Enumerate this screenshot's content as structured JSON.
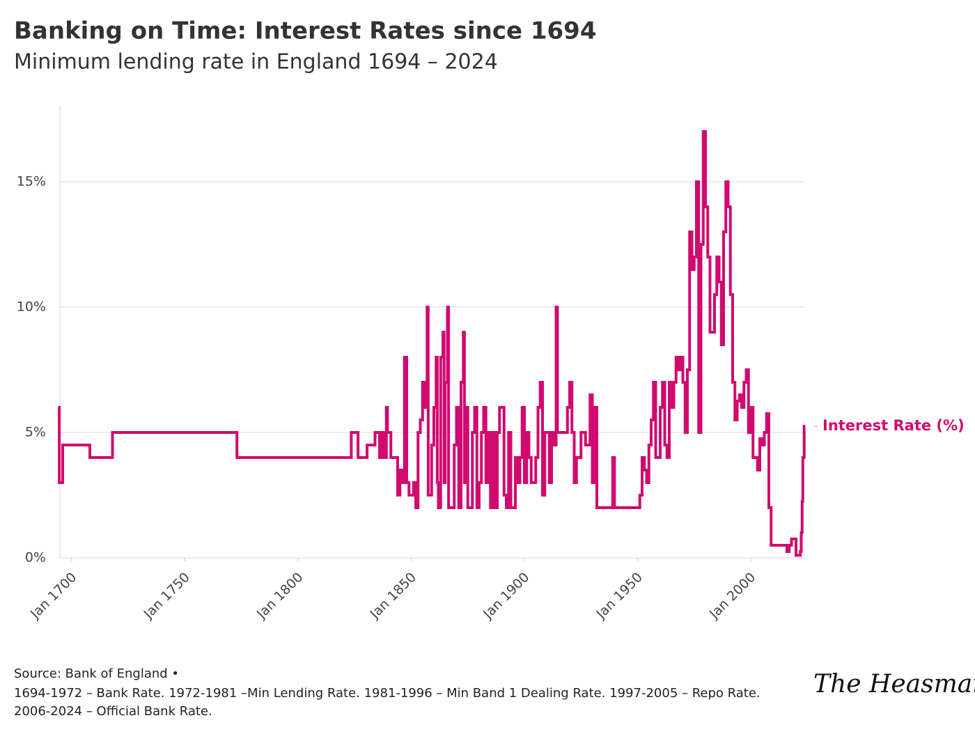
{
  "chart_data": {
    "type": "line",
    "step": true,
    "title": "Banking on Time: Interest Rates since 1694",
    "subtitle": "Minimum lending rate in England 1694 – 2024",
    "source": "Source: Bank of England •",
    "notes": [
      "1694-1972 – Bank Rate. 1972-1981 –Min Lending Rate. 1981-1996 – Min Band 1 Dealing Rate. 1997-2005 – Repo Rate.",
      "2006-2024 – Official Bank Rate."
    ],
    "signature": "The Heasman",
    "grid": true,
    "xlim": [
      1694,
      2024
    ],
    "ylim": [
      0,
      18
    ],
    "xticks": [
      {
        "value": 1700,
        "label": "Jan 1700"
      },
      {
        "value": 1750,
        "label": "Jan 1750"
      },
      {
        "value": 1800,
        "label": "Jan 1800"
      },
      {
        "value": 1850,
        "label": "Jan 1850"
      },
      {
        "value": 1900,
        "label": "Jan 1900"
      },
      {
        "value": 1950,
        "label": "Jan 1950"
      },
      {
        "value": 2000,
        "label": "Jan 2000"
      }
    ],
    "yticks": [
      {
        "value": 0,
        "label": "0%"
      },
      {
        "value": 5,
        "label": "5%"
      },
      {
        "value": 10,
        "label": "10%"
      },
      {
        "value": 15,
        "label": "15%"
      }
    ],
    "series": [
      {
        "name": "Interest Rate (%)",
        "color": "#d10a6f",
        "x": [
          1694,
          1694.5,
          1696,
          1708,
          1718,
          1773,
          1823.5,
          1826.5,
          1830.5,
          1834,
          1836,
          1837,
          1838,
          1839,
          1839.5,
          1840,
          1841,
          1842,
          1844,
          1845,
          1846,
          1847,
          1848,
          1849,
          1851,
          1852,
          1853,
          1854,
          1855,
          1856,
          1857,
          1857.5,
          1858,
          1859,
          1860,
          1861,
          1861.5,
          1862,
          1863,
          1864,
          1864.5,
          1865,
          1866,
          1866.5,
          1867,
          1869,
          1870,
          1871,
          1872,
          1873,
          1873.5,
          1874,
          1875,
          1877,
          1878,
          1879,
          1880,
          1881,
          1882,
          1883,
          1884,
          1885,
          1886,
          1887,
          1888,
          1889,
          1890,
          1891,
          1892,
          1893,
          1894,
          1896,
          1897,
          1898,
          1899,
          1900,
          1901,
          1902,
          1903,
          1904,
          1905,
          1906,
          1907,
          1908,
          1909,
          1910,
          1911,
          1912,
          1913,
          1914,
          1914.6,
          1917,
          1919,
          1920,
          1921,
          1922,
          1923,
          1925,
          1926,
          1927,
          1929,
          1930,
          1931,
          1932,
          1939,
          1939.8,
          1951,
          1952,
          1953,
          1954,
          1955,
          1956,
          1957,
          1958,
          1960,
          1961,
          1962,
          1963,
          1964,
          1965,
          1966,
          1967,
          1968,
          1969,
          1970,
          1971,
          1972,
          1973,
          1974,
          1975,
          1976,
          1977,
          1978,
          1979,
          1980,
          1981,
          1982,
          1983,
          1984,
          1985,
          1986,
          1987,
          1988,
          1989,
          1990,
          1991,
          1992,
          1993,
          1994,
          1995,
          1996,
          1997,
          1998,
          1999,
          2000,
          2001,
          2002,
          2003,
          2004,
          2005,
          2006,
          2007,
          2008,
          2009,
          2016,
          2017,
          2018,
          2020,
          2021.9,
          2022.3,
          2022.7,
          2023,
          2023.6,
          2024
        ],
        "values": [
          6,
          3,
          4.5,
          4,
          5,
          4,
          5,
          4,
          4.5,
          5,
          4,
          5,
          4,
          6,
          5,
          5,
          4,
          4,
          2.5,
          3.5,
          3,
          8,
          3,
          2.5,
          3,
          2,
          5,
          5.5,
          7,
          6,
          10,
          2.5,
          2.5,
          4.5,
          6,
          8,
          3,
          2,
          8,
          9,
          3,
          7,
          10,
          2,
          2,
          4.5,
          6,
          2,
          7,
          9,
          3,
          6,
          2,
          5,
          6,
          2,
          3,
          5,
          6,
          3,
          5,
          2,
          5,
          2,
          5,
          6,
          6,
          2.5,
          2,
          5,
          2,
          4,
          3,
          4,
          6,
          3,
          5,
          4,
          3,
          3,
          4,
          6,
          7,
          2.5,
          5,
          5,
          3,
          5,
          4.5,
          10,
          5,
          5,
          6,
          7,
          5,
          3,
          4,
          5,
          5,
          4.5,
          6.5,
          3,
          6,
          2,
          4,
          2,
          2.5,
          4,
          3.5,
          3,
          4.5,
          5.5,
          7,
          4,
          6,
          7,
          4.5,
          4,
          7,
          6,
          7,
          8,
          7.5,
          8,
          7,
          5,
          7.5,
          13,
          11.5,
          12,
          15,
          5,
          12.5,
          17,
          14,
          12,
          9,
          9,
          10.5,
          12,
          11,
          8.5,
          13,
          15,
          14,
          10.5,
          7,
          5.5,
          6.25,
          6.5,
          6,
          7,
          7.5,
          5,
          6,
          4,
          4,
          3.5,
          4.75,
          4.5,
          5,
          5.75,
          2,
          0.5,
          0.25,
          0.5,
          0.75,
          0.1,
          0.25,
          1,
          2.25,
          4,
          5.25,
          5.25
        ]
      }
    ]
  }
}
